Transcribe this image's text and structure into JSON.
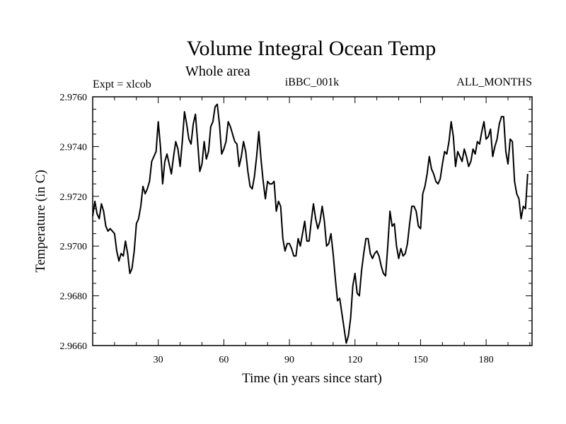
{
  "chart_data": {
    "type": "line",
    "title": "Volume Integral Ocean Temp",
    "subtitle": "Whole area",
    "left_label": "Expt = xlcob",
    "center_label": "iBBC_001k",
    "right_label": "ALL_MONTHS",
    "xlabel": "Time (in years since start)",
    "ylabel": "Temperature (in C)",
    "xlim": [
      0,
      201
    ],
    "ylim": [
      2.966,
      2.976
    ],
    "x_ticks": [
      30,
      60,
      90,
      120,
      150,
      180
    ],
    "y_ticks": [
      "2.9660",
      "2.9680",
      "2.9700",
      "2.9720",
      "2.9740",
      "2.9760"
    ],
    "series": [
      {
        "name": "Volume Integral Ocean Temp",
        "color": "#000000",
        "start_year": 0,
        "step": 1,
        "values": [
          2.9712,
          2.9718,
          2.9713,
          2.9711,
          2.9717,
          2.9714,
          2.9708,
          2.9706,
          2.9707,
          2.9706,
          2.9705,
          2.9698,
          2.9694,
          2.9697,
          2.9696,
          2.9702,
          2.9697,
          2.9689,
          2.9691,
          2.9698,
          2.9709,
          2.9711,
          2.9716,
          2.9724,
          2.9721,
          2.9723,
          2.9726,
          2.9734,
          2.9736,
          2.9738,
          2.975,
          2.974,
          2.9725,
          2.9734,
          2.9737,
          2.9733,
          2.9729,
          2.9736,
          2.9742,
          2.9739,
          2.9732,
          2.9742,
          2.9754,
          2.9749,
          2.9743,
          2.9741,
          2.9749,
          2.9753,
          2.9742,
          2.973,
          2.9733,
          2.9742,
          2.9735,
          2.9738,
          2.9748,
          2.975,
          2.9756,
          2.9757,
          2.9749,
          2.9737,
          2.9739,
          2.9742,
          2.975,
          2.9748,
          2.9745,
          2.9742,
          2.9741,
          2.9732,
          2.9736,
          2.9742,
          2.9738,
          2.973,
          2.9724,
          2.9723,
          2.9728,
          2.9736,
          2.9746,
          2.9735,
          2.9726,
          2.9719,
          2.9726,
          2.9725,
          2.9725,
          2.9726,
          2.9714,
          2.9718,
          2.9716,
          2.9703,
          2.9698,
          2.9701,
          2.9701,
          2.9699,
          2.9696,
          2.9696,
          2.9703,
          2.97,
          2.9705,
          2.971,
          2.9702,
          2.9702,
          2.971,
          2.9717,
          2.9711,
          2.9707,
          2.971,
          2.9716,
          2.971,
          2.97,
          2.9701,
          2.9705,
          2.9697,
          2.9687,
          2.9678,
          2.9679,
          2.9673,
          2.9667,
          2.9661,
          2.9664,
          2.9671,
          2.9684,
          2.9689,
          2.9681,
          2.968,
          2.969,
          2.9697,
          2.9703,
          2.9703,
          2.9697,
          2.9695,
          2.9697,
          2.9698,
          2.9696,
          2.9692,
          2.9689,
          2.9688,
          2.97,
          2.9714,
          2.9708,
          2.9709,
          2.97,
          2.9695,
          2.9699,
          2.9696,
          2.9697,
          2.9701,
          2.9709,
          2.9716,
          2.9716,
          2.9714,
          2.9708,
          2.9707,
          2.9721,
          2.9724,
          2.9729,
          2.9736,
          2.9731,
          2.9729,
          2.9726,
          2.9725,
          2.9727,
          2.9733,
          2.9738,
          2.9737,
          2.9742,
          2.975,
          2.9744,
          2.9732,
          2.9738,
          2.9736,
          2.9734,
          2.9739,
          2.9736,
          2.9732,
          2.9734,
          2.9739,
          2.9737,
          2.9742,
          2.9741,
          2.9746,
          2.975,
          2.9743,
          2.9744,
          2.9747,
          2.9736,
          2.974,
          2.9743,
          2.9749,
          2.9752,
          2.9752,
          2.9738,
          2.9733,
          2.9743,
          2.9742,
          2.9726,
          2.9721,
          2.9719,
          2.9711,
          2.9716,
          2.9715,
          2.9729
        ]
      }
    ]
  }
}
